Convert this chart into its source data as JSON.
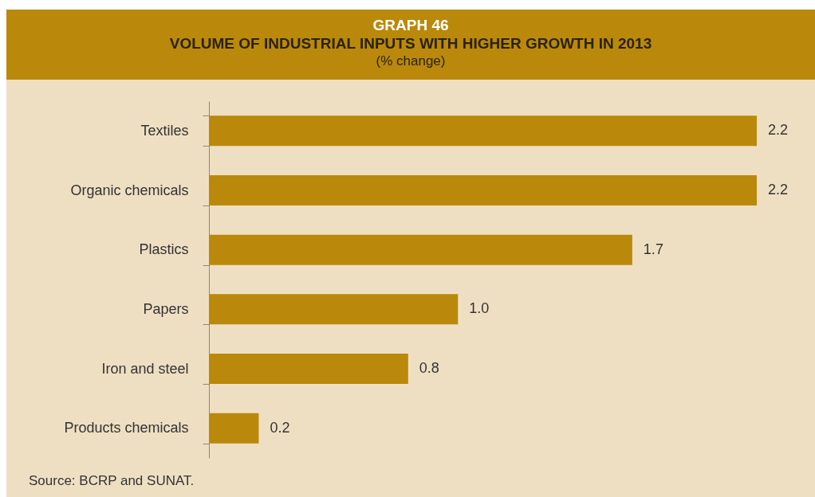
{
  "chart_data": {
    "type": "bar",
    "orientation": "horizontal",
    "title": "GRAPH 46\nVOLUME OF INDUSTRIAL INPUTS WITH HIGHER GROWTH IN 2013",
    "subtitle": "(% change)",
    "categories": [
      "Textiles",
      "Organic chemicals",
      "Plastics",
      "Papers",
      "Iron and steel",
      "Products chemicals"
    ],
    "values": [
      2.2,
      2.2,
      1.7,
      1.0,
      0.8,
      0.2
    ],
    "color": "#ba890b",
    "value_labels": [
      "2.2",
      "2.2",
      "1.7",
      "1.0",
      "0.8",
      "0.2"
    ],
    "annotations": [
      "Source: BCRP and SUNAT."
    ]
  }
}
